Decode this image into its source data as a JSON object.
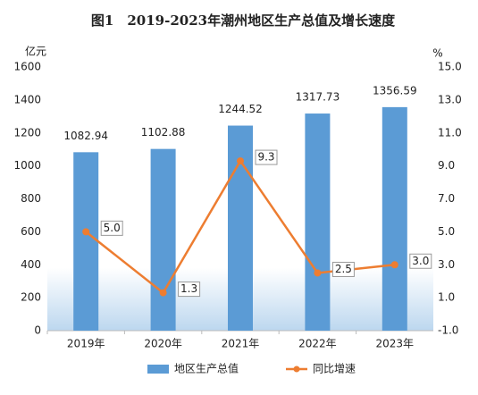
{
  "chart_data": {
    "type": "bar",
    "title": "图1　2019-2023年潮州地区生产总值及增长速度",
    "y_label": "亿元",
    "y2_label": "%",
    "categories": [
      "2019年",
      "2020年",
      "2021年",
      "2022年",
      "2023年"
    ],
    "series": [
      {
        "name": "地区生产总值",
        "type": "bar",
        "color": "#5b9bd5",
        "values": [
          1082.94,
          1102.88,
          1244.52,
          1317.73,
          1356.59
        ]
      },
      {
        "name": "同比增速",
        "type": "line",
        "axis": "y2",
        "color": "#ed7d31",
        "values": [
          5.0,
          1.3,
          9.3,
          2.5,
          3.0
        ],
        "value_labels": [
          "5.0",
          "1.3",
          "9.3",
          "2.5",
          "3.0"
        ]
      }
    ],
    "ylim": [
      0,
      1600
    ],
    "yticks": [
      0,
      200,
      400,
      600,
      800,
      1000,
      1200,
      1400,
      1600
    ],
    "y2lim": [
      -1,
      15
    ],
    "y2ticks": [
      {
        "value": -1,
        "label": "-1.0"
      },
      {
        "value": 1,
        "label": "1.0"
      },
      {
        "value": 3,
        "label": "3.0"
      },
      {
        "value": 5,
        "label": "5.0"
      },
      {
        "value": 7,
        "label": "7.0"
      },
      {
        "value": 9,
        "label": "9.0"
      },
      {
        "value": 11,
        "label": "11.0"
      },
      {
        "value": 13,
        "label": "13.0"
      },
      {
        "value": 15,
        "label": "15.0"
      }
    ],
    "legend": "bottom"
  }
}
